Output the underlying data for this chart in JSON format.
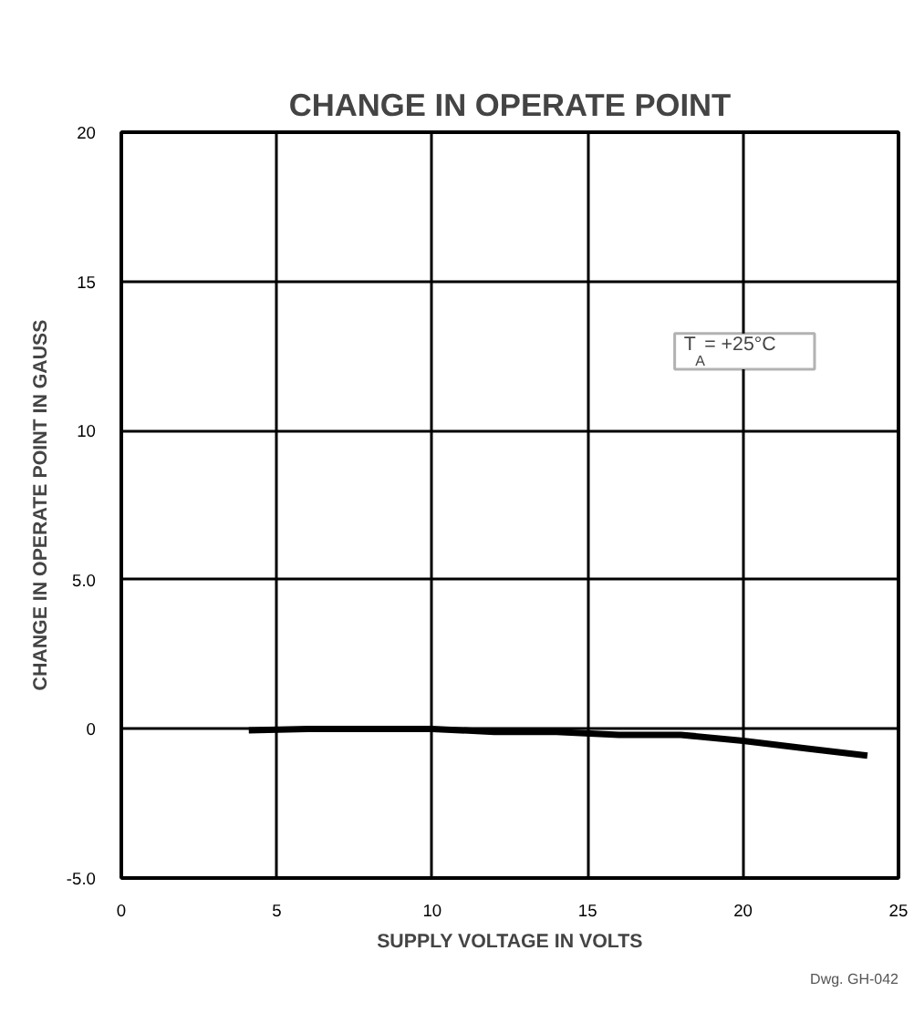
{
  "chart_data": {
    "type": "line",
    "title": "CHANGE IN OPERATE POINT",
    "xlabel": "SUPPLY VOLTAGE IN VOLTS",
    "ylabel": "CHANGE IN OPERATE POINT IN GAUSS",
    "x": [
      4.1,
      6,
      8,
      10,
      12,
      14,
      16,
      18,
      20,
      22,
      24
    ],
    "series": [
      {
        "color": "#000000",
        "values": [
          -0.05,
          0.0,
          0.0,
          0.0,
          -0.1,
          -0.1,
          -0.2,
          -0.2,
          -0.4,
          -0.65,
          -0.9
        ]
      }
    ],
    "xlim": [
      0,
      25
    ],
    "ylim": [
      -5,
      20
    ],
    "xticks": [
      0,
      5,
      10,
      15,
      20,
      25
    ],
    "yticks": [
      {
        "value": -5,
        "label": "-5.0"
      },
      0,
      {
        "value": 5,
        "label": "5.0"
      },
      10,
      15,
      20
    ],
    "grid": true,
    "marker": "none",
    "line_style": "solid",
    "annotations": [
      "T$_{A}$ = +25°C",
      "Dwg. GH-042"
    ]
  }
}
